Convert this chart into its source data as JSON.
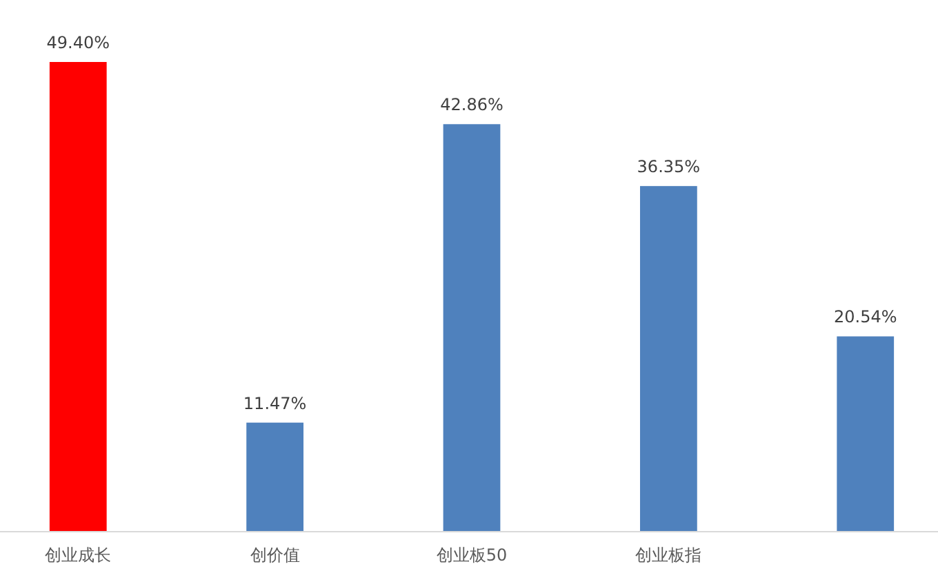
{
  "chart_data": {
    "type": "bar",
    "categories": [
      "创业成长",
      "创价值",
      "创业板50",
      "创业板指",
      null
    ],
    "values": [
      49.4,
      11.47,
      42.86,
      36.35,
      20.54
    ],
    "colors": [
      "#ff0000",
      "#4f81bd",
      "#4f81bd",
      "#4f81bd",
      "#4f81bd"
    ],
    "value_labels": [
      "49.40%",
      "11.47%",
      "42.86%",
      "36.35%",
      "20.54%"
    ]
  }
}
